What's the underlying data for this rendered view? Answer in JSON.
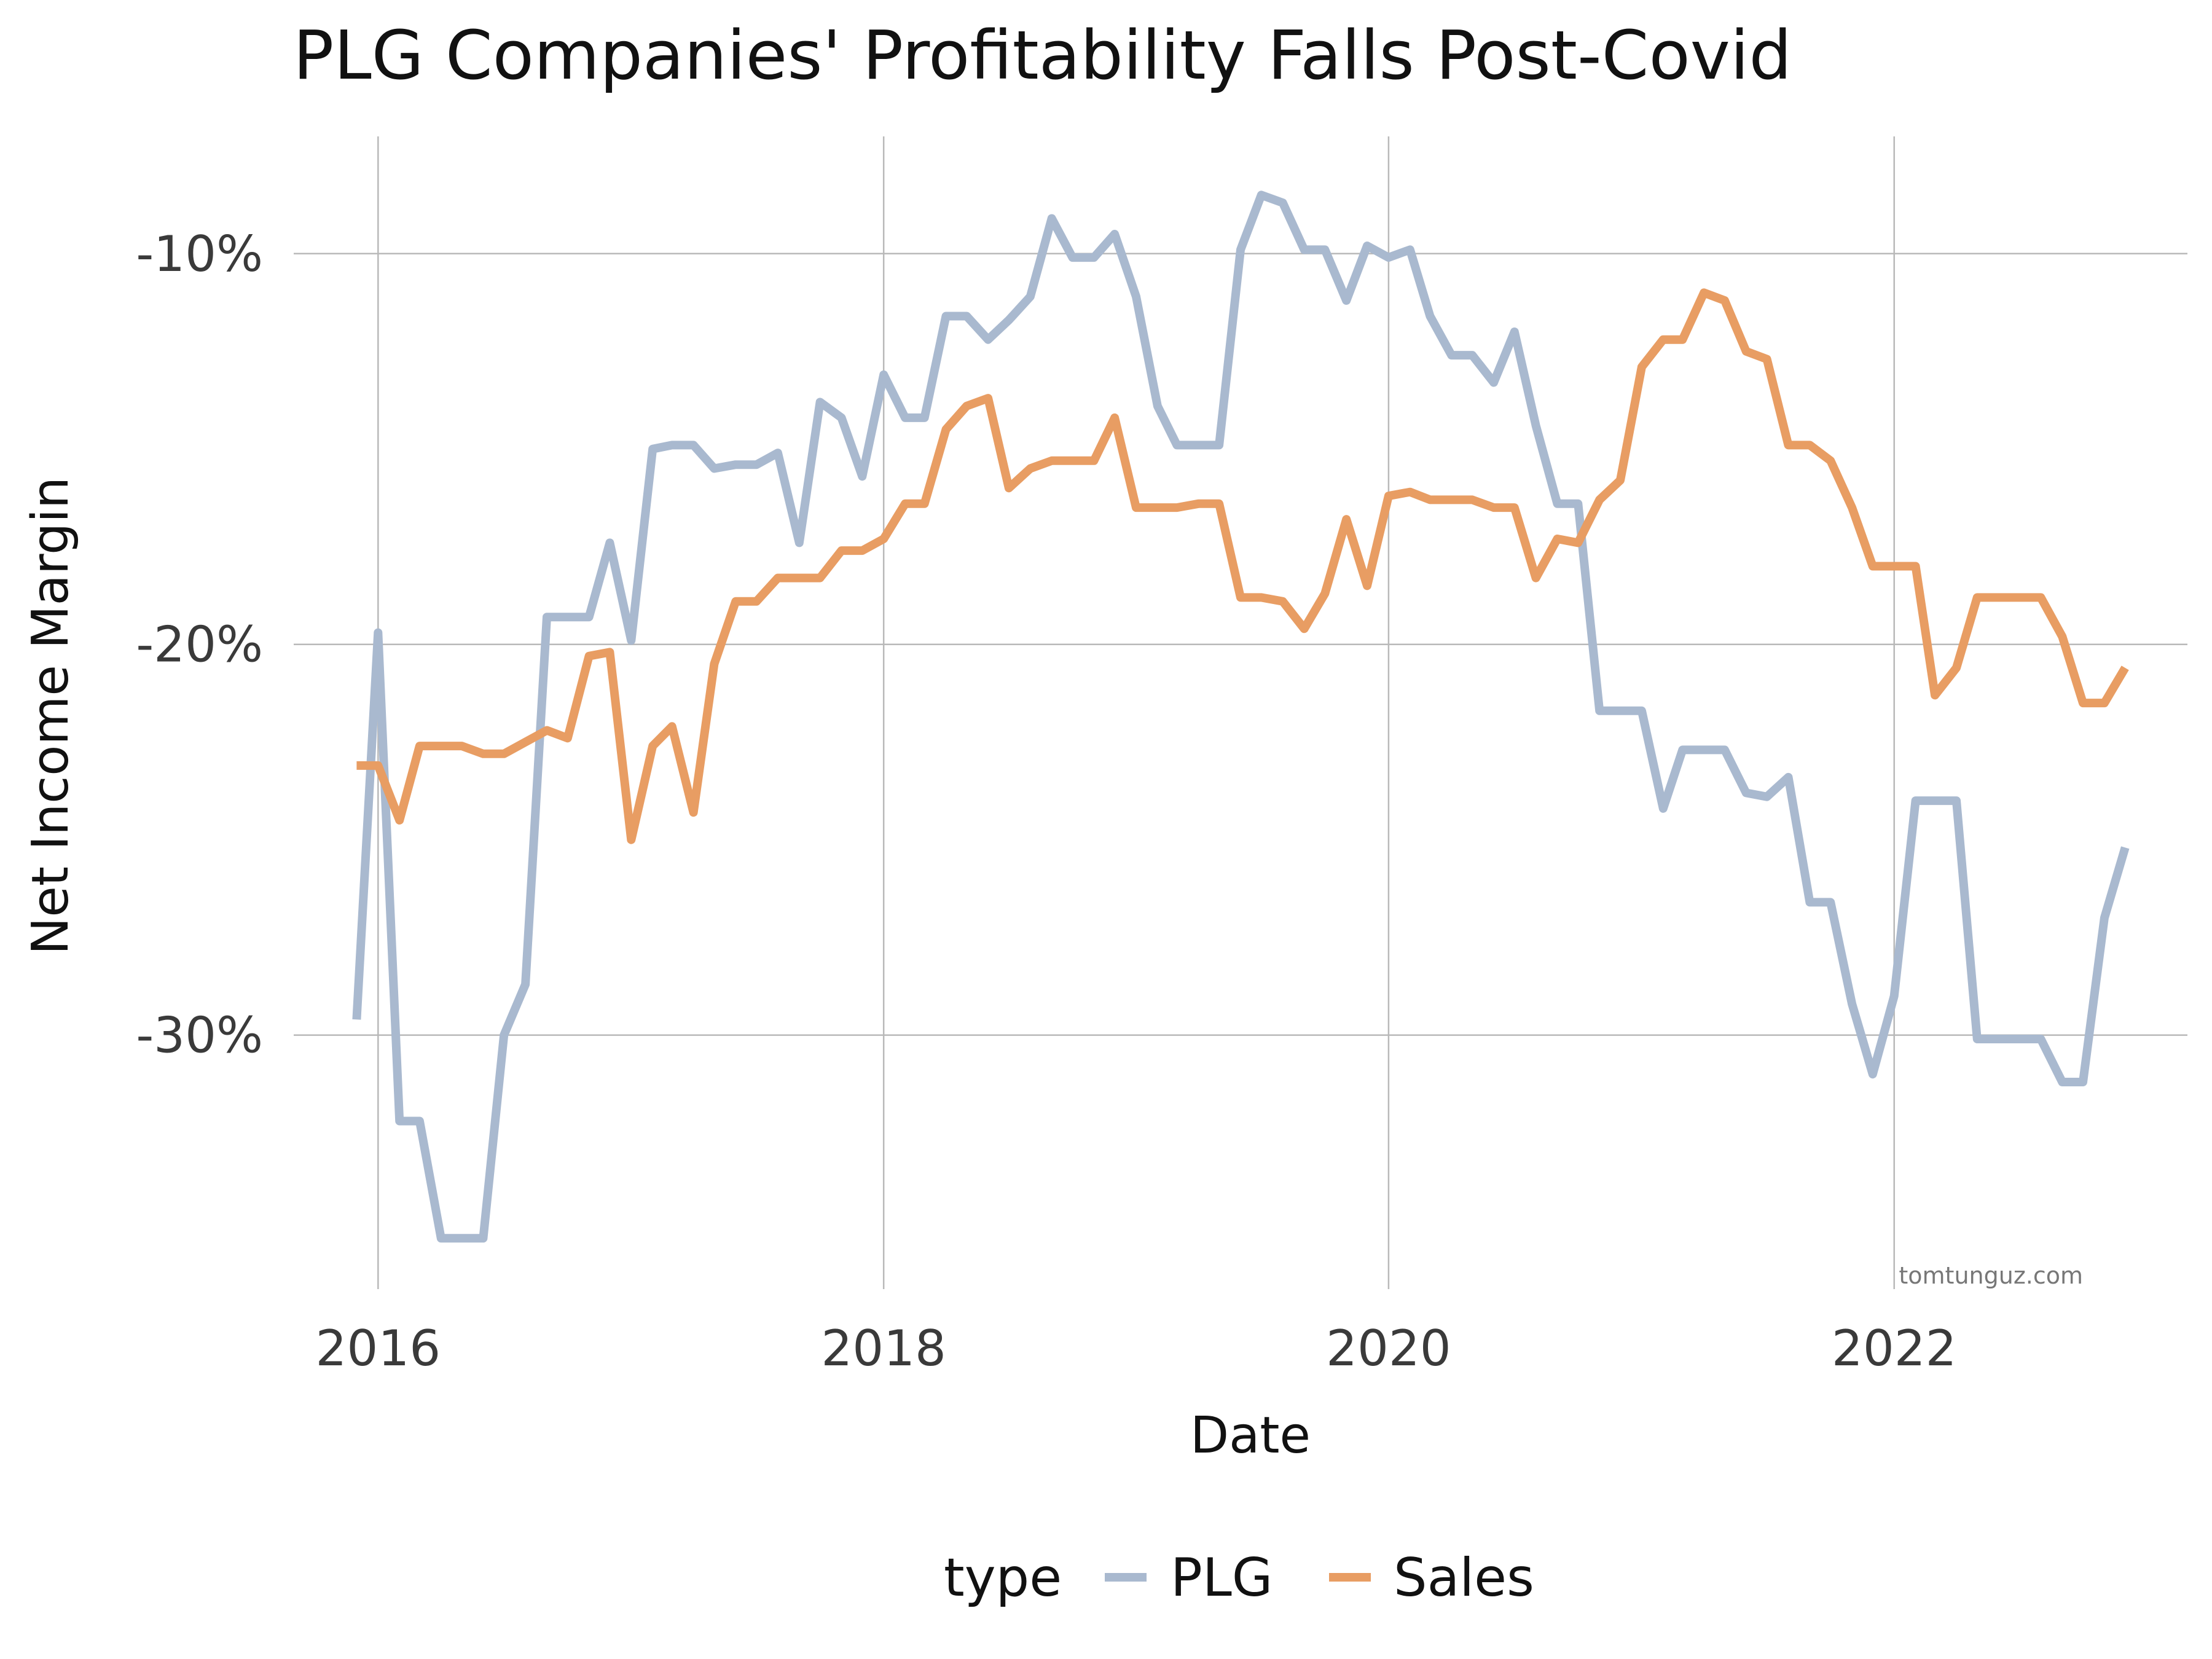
{
  "chart_data": {
    "type": "line",
    "title": "PLG Companies' Profitability Falls Post-Covid",
    "xlabel": "Date",
    "ylabel": "Net Income Margin",
    "xlim": [
      "2015-09-01",
      "2023-03-01"
    ],
    "ylim": [
      -0.365,
      -0.07
    ],
    "x_ticks": [
      {
        "date": "2016-01-01",
        "label": "2016"
      },
      {
        "date": "2018-01-01",
        "label": "2018"
      },
      {
        "date": "2020-01-01",
        "label": "2020"
      },
      {
        "date": "2022-01-01",
        "label": "2022"
      }
    ],
    "y_ticks": [
      {
        "value": -0.1,
        "label": "-10%"
      },
      {
        "value": -0.2,
        "label": "-20%"
      },
      {
        "value": -0.3,
        "label": "-30%"
      }
    ],
    "grid": true,
    "legend": {
      "title": "type",
      "position": "bottom"
    },
    "credit": "tomtunguz.com",
    "series": [
      {
        "name": "PLG",
        "color": "#a9b9cf",
        "points": [
          [
            "2015-12-01",
            -0.296
          ],
          [
            "2016-01-01",
            -0.197
          ],
          [
            "2016-02-01",
            -0.322
          ],
          [
            "2016-03-01",
            -0.322
          ],
          [
            "2016-04-01",
            -0.352
          ],
          [
            "2016-05-01",
            -0.352
          ],
          [
            "2016-06-01",
            -0.352
          ],
          [
            "2016-07-01",
            -0.3
          ],
          [
            "2016-08-01",
            -0.287
          ],
          [
            "2016-09-01",
            -0.193
          ],
          [
            "2016-10-01",
            -0.193
          ],
          [
            "2016-11-01",
            -0.193
          ],
          [
            "2016-12-01",
            -0.174
          ],
          [
            "2017-01-01",
            -0.199
          ],
          [
            "2017-02-01",
            -0.15
          ],
          [
            "2017-03-01",
            -0.149
          ],
          [
            "2017-04-01",
            -0.149
          ],
          [
            "2017-05-01",
            -0.155
          ],
          [
            "2017-06-01",
            -0.154
          ],
          [
            "2017-07-01",
            -0.154
          ],
          [
            "2017-08-01",
            -0.151
          ],
          [
            "2017-09-01",
            -0.174
          ],
          [
            "2017-10-01",
            -0.138
          ],
          [
            "2017-11-01",
            -0.142
          ],
          [
            "2017-12-01",
            -0.157
          ],
          [
            "2018-01-01",
            -0.131
          ],
          [
            "2018-02-01",
            -0.142
          ],
          [
            "2018-03-01",
            -0.142
          ],
          [
            "2018-04-01",
            -0.116
          ],
          [
            "2018-05-01",
            -0.116
          ],
          [
            "2018-06-01",
            -0.122
          ],
          [
            "2018-07-01",
            -0.117
          ],
          [
            "2018-08-01",
            -0.111
          ],
          [
            "2018-09-01",
            -0.091
          ],
          [
            "2018-10-01",
            -0.101
          ],
          [
            "2018-11-01",
            -0.101
          ],
          [
            "2018-12-01",
            -0.095
          ],
          [
            "2019-01-01",
            -0.111
          ],
          [
            "2019-02-01",
            -0.139
          ],
          [
            "2019-03-01",
            -0.149
          ],
          [
            "2019-04-01",
            -0.149
          ],
          [
            "2019-05-01",
            -0.149
          ],
          [
            "2019-06-01",
            -0.099
          ],
          [
            "2019-07-01",
            -0.085
          ],
          [
            "2019-08-01",
            -0.087
          ],
          [
            "2019-09-01",
            -0.099
          ],
          [
            "2019-10-01",
            -0.099
          ],
          [
            "2019-11-01",
            -0.112
          ],
          [
            "2019-12-01",
            -0.098
          ],
          [
            "2020-01-01",
            -0.101
          ],
          [
            "2020-02-01",
            -0.099
          ],
          [
            "2020-03-01",
            -0.116
          ],
          [
            "2020-04-01",
            -0.126
          ],
          [
            "2020-05-01",
            -0.126
          ],
          [
            "2020-06-01",
            -0.133
          ],
          [
            "2020-07-01",
            -0.12
          ],
          [
            "2020-08-01",
            -0.144
          ],
          [
            "2020-09-01",
            -0.164
          ],
          [
            "2020-10-01",
            -0.164
          ],
          [
            "2020-11-01",
            -0.217
          ],
          [
            "2020-12-01",
            -0.217
          ],
          [
            "2021-01-01",
            -0.217
          ],
          [
            "2021-02-01",
            -0.242
          ],
          [
            "2021-03-01",
            -0.227
          ],
          [
            "2021-04-01",
            -0.227
          ],
          [
            "2021-05-01",
            -0.227
          ],
          [
            "2021-06-01",
            -0.238
          ],
          [
            "2021-07-01",
            -0.239
          ],
          [
            "2021-08-01",
            -0.234
          ],
          [
            "2021-09-01",
            -0.266
          ],
          [
            "2021-10-01",
            -0.266
          ],
          [
            "2021-11-01",
            -0.292
          ],
          [
            "2021-12-01",
            -0.31
          ],
          [
            "2022-01-01",
            -0.29
          ],
          [
            "2022-02-01",
            -0.24
          ],
          [
            "2022-03-01",
            -0.24
          ],
          [
            "2022-04-01",
            -0.24
          ],
          [
            "2022-05-01",
            -0.301
          ],
          [
            "2022-06-01",
            -0.301
          ],
          [
            "2022-07-01",
            -0.301
          ],
          [
            "2022-08-01",
            -0.301
          ],
          [
            "2022-09-01",
            -0.312
          ],
          [
            "2022-10-01",
            -0.312
          ],
          [
            "2022-11-01",
            -0.27
          ],
          [
            "2022-12-01",
            -0.252
          ]
        ]
      },
      {
        "name": "Sales",
        "color": "#e89d63",
        "points": [
          [
            "2015-12-01",
            -0.231
          ],
          [
            "2016-01-01",
            -0.231
          ],
          [
            "2016-02-01",
            -0.245
          ],
          [
            "2016-03-01",
            -0.226
          ],
          [
            "2016-04-01",
            -0.226
          ],
          [
            "2016-05-01",
            -0.226
          ],
          [
            "2016-06-01",
            -0.228
          ],
          [
            "2016-07-01",
            -0.228
          ],
          [
            "2016-08-01",
            -0.225
          ],
          [
            "2016-09-01",
            -0.222
          ],
          [
            "2016-10-01",
            -0.224
          ],
          [
            "2016-11-01",
            -0.203
          ],
          [
            "2016-12-01",
            -0.202
          ],
          [
            "2017-01-01",
            -0.25
          ],
          [
            "2017-02-01",
            -0.226
          ],
          [
            "2017-03-01",
            -0.221
          ],
          [
            "2017-04-01",
            -0.243
          ],
          [
            "2017-05-01",
            -0.205
          ],
          [
            "2017-06-01",
            -0.189
          ],
          [
            "2017-07-01",
            -0.189
          ],
          [
            "2017-08-01",
            -0.183
          ],
          [
            "2017-09-01",
            -0.183
          ],
          [
            "2017-10-01",
            -0.183
          ],
          [
            "2017-11-01",
            -0.176
          ],
          [
            "2017-12-01",
            -0.176
          ],
          [
            "2018-01-01",
            -0.173
          ],
          [
            "2018-02-01",
            -0.164
          ],
          [
            "2018-03-01",
            -0.164
          ],
          [
            "2018-04-01",
            -0.145
          ],
          [
            "2018-05-01",
            -0.139
          ],
          [
            "2018-06-01",
            -0.137
          ],
          [
            "2018-07-01",
            -0.16
          ],
          [
            "2018-08-01",
            -0.155
          ],
          [
            "2018-09-01",
            -0.153
          ],
          [
            "2018-10-01",
            -0.153
          ],
          [
            "2018-11-01",
            -0.153
          ],
          [
            "2018-12-01",
            -0.142
          ],
          [
            "2019-01-01",
            -0.165
          ],
          [
            "2019-02-01",
            -0.165
          ],
          [
            "2019-03-01",
            -0.165
          ],
          [
            "2019-04-01",
            -0.164
          ],
          [
            "2019-05-01",
            -0.164
          ],
          [
            "2019-06-01",
            -0.188
          ],
          [
            "2019-07-01",
            -0.188
          ],
          [
            "2019-08-01",
            -0.189
          ],
          [
            "2019-09-01",
            -0.196
          ],
          [
            "2019-10-01",
            -0.187
          ],
          [
            "2019-11-01",
            -0.168
          ],
          [
            "2019-12-01",
            -0.185
          ],
          [
            "2020-01-01",
            -0.162
          ],
          [
            "2020-02-01",
            -0.161
          ],
          [
            "2020-03-01",
            -0.163
          ],
          [
            "2020-04-01",
            -0.163
          ],
          [
            "2020-05-01",
            -0.163
          ],
          [
            "2020-06-01",
            -0.165
          ],
          [
            "2020-07-01",
            -0.165
          ],
          [
            "2020-08-01",
            -0.183
          ],
          [
            "2020-09-01",
            -0.173
          ],
          [
            "2020-10-01",
            -0.174
          ],
          [
            "2020-11-01",
            -0.163
          ],
          [
            "2020-12-01",
            -0.158
          ],
          [
            "2021-01-01",
            -0.129
          ],
          [
            "2021-02-01",
            -0.122
          ],
          [
            "2021-03-01",
            -0.122
          ],
          [
            "2021-04-01",
            -0.11
          ],
          [
            "2021-05-01",
            -0.112
          ],
          [
            "2021-06-01",
            -0.125
          ],
          [
            "2021-07-01",
            -0.127
          ],
          [
            "2021-08-01",
            -0.149
          ],
          [
            "2021-09-01",
            -0.149
          ],
          [
            "2021-10-01",
            -0.153
          ],
          [
            "2021-11-01",
            -0.165
          ],
          [
            "2021-12-01",
            -0.18
          ],
          [
            "2022-01-01",
            -0.18
          ],
          [
            "2022-02-01",
            -0.18
          ],
          [
            "2022-03-01",
            -0.213
          ],
          [
            "2022-04-01",
            -0.206
          ],
          [
            "2022-05-01",
            -0.188
          ],
          [
            "2022-06-01",
            -0.188
          ],
          [
            "2022-07-01",
            -0.188
          ],
          [
            "2022-08-01",
            -0.188
          ],
          [
            "2022-09-01",
            -0.198
          ],
          [
            "2022-10-01",
            -0.215
          ],
          [
            "2022-11-01",
            -0.215
          ],
          [
            "2022-12-01",
            -0.206
          ]
        ]
      }
    ]
  }
}
